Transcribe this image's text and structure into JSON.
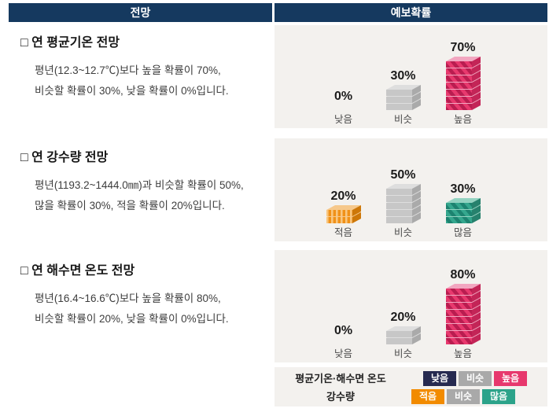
{
  "header": {
    "left": "전망",
    "right": "예보확률"
  },
  "sections": [
    {
      "title": "□ 연 평균기온 전망",
      "line1": "평년(12.3~12.7℃)보다 높을 확률이 70%,",
      "line2": "비슷할 확률이 30%, 낮을 확률이 0%입니다."
    },
    {
      "title": "□ 연 강수량 전망",
      "line1": "평년(1193.2~1444.0㎜)과 비슷할 확률이 50%,",
      "line2": "많을 확률이 30%, 적을 확률이 20%입니다."
    },
    {
      "title": "□ 연 해수면 온도 전망",
      "line1": "평년(16.4~16.6℃)보다 높을 확률이 80%,",
      "line2": "비슷할 확률이 20%, 낮을 확률이 0%입니다."
    }
  ],
  "chart_data": [
    {
      "type": "bar",
      "title": "연 평균기온 전망 예보확률",
      "unit": "%",
      "categories": [
        "낮음",
        "비슷",
        "높음"
      ],
      "values": [
        0,
        30,
        70
      ],
      "colors": [
        "navy",
        "gray",
        "pink"
      ],
      "ylim": [
        0,
        100
      ],
      "grid": false,
      "legend_position": "bottom-panel"
    },
    {
      "type": "bar",
      "title": "연 강수량 전망 예보확률",
      "unit": "%",
      "categories": [
        "적음",
        "비슷",
        "많음"
      ],
      "values": [
        20,
        50,
        30
      ],
      "colors": [
        "orange",
        "gray",
        "teal"
      ],
      "ylim": [
        0,
        100
      ],
      "grid": false,
      "legend_position": "bottom-panel"
    },
    {
      "type": "bar",
      "title": "연 해수면 온도 전망 예보확률",
      "unit": "%",
      "categories": [
        "낮음",
        "비슷",
        "높음"
      ],
      "values": [
        0,
        20,
        80
      ],
      "colors": [
        "navy",
        "gray",
        "pink"
      ],
      "ylim": [
        0,
        100
      ],
      "grid": false,
      "legend_position": "bottom-panel"
    }
  ],
  "palette": {
    "navy": {
      "front": "#262a50",
      "side": "#16182f",
      "top": "#7d80a0",
      "pattern": "none"
    },
    "gray": {
      "front": "#c7c7c7",
      "side": "#aaaaaa",
      "top": "#dedede",
      "pattern": "none"
    },
    "pink": {
      "front": "#e8396e",
      "stripe": "#b91d50",
      "side": "#c32557",
      "top": "#f2a6c0",
      "pattern": "diag"
    },
    "orange": {
      "front": "#f09118",
      "stripe": "#f9c67e",
      "side": "#cd7708",
      "top": "#f6c88b",
      "pattern": "vert"
    },
    "teal": {
      "front": "#35a78e",
      "stripe": "#1d8370",
      "side": "#26816d",
      "top": "#93d3c1",
      "pattern": "diag"
    }
  },
  "legend": {
    "rows": [
      {
        "label": "평균기온·해수면 온도",
        "chips": [
          {
            "label": "낮음",
            "color": "#262a50"
          },
          {
            "label": "비슷",
            "color": "#a9a9a9"
          },
          {
            "label": "높음",
            "color": "#e7386d"
          }
        ]
      },
      {
        "label": "강수량",
        "chips": [
          {
            "label": "적음",
            "color": "#f28b00"
          },
          {
            "label": "비슷",
            "color": "#a9a9a9"
          },
          {
            "label": "많음",
            "color": "#2ca38a"
          }
        ]
      }
    ]
  },
  "colors": {
    "header_bg": "#15395f",
    "panel_bg": "#f3f1ee",
    "page_bg": "#ffffff"
  }
}
